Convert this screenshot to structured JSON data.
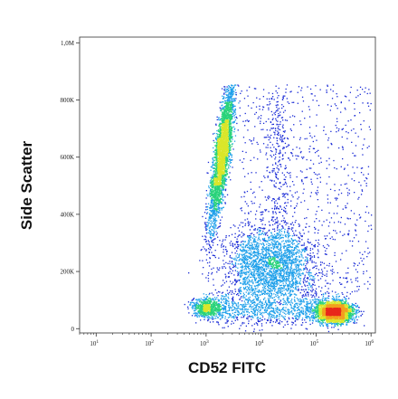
{
  "chart_data": {
    "type": "scatter",
    "style": "flow-cytometry density dot plot (pseudocolor)",
    "xlabel": "CD52 FITC",
    "ylabel": "Side Scatter",
    "x_scale": "log",
    "xlim": [
      5,
      1200000.0
    ],
    "ylim": [
      -15000,
      1020000
    ],
    "x_ticks": [
      {
        "value": 10,
        "base": "10",
        "exp": "1"
      },
      {
        "value": 100,
        "base": "10",
        "exp": "2"
      },
      {
        "value": 1000,
        "base": "10",
        "exp": "3"
      },
      {
        "value": 10000,
        "base": "10",
        "exp": "4"
      },
      {
        "value": 100000,
        "base": "10",
        "exp": "5"
      },
      {
        "value": 1000000,
        "base": "10",
        "exp": "6"
      }
    ],
    "y_ticks": [
      {
        "value": 0,
        "label": "0"
      },
      {
        "value": 200000,
        "label": "200K"
      },
      {
        "value": 400000,
        "label": "400K"
      },
      {
        "value": 600000,
        "label": "600K"
      },
      {
        "value": 800000,
        "label": "800K"
      },
      {
        "value": 1000000,
        "label": "1,0M"
      }
    ],
    "grid": false,
    "legend": "none",
    "density_colors": [
      "#1a2bd6",
      "#1fa0ea",
      "#29d37a",
      "#d9e62a",
      "#f2a01e",
      "#e8281c"
    ],
    "populations": [
      {
        "x_log_center": 3.3,
        "y_center": 610000,
        "x_log_sd": 0.12,
        "y_sd": 150000,
        "tilt": 0.9,
        "density": "high"
      },
      {
        "x_log_center": 5.35,
        "y_center": 60000,
        "x_log_sd": 0.2,
        "y_sd": 22000,
        "density": "very high"
      },
      {
        "x_log_center": 4.2,
        "y_center": 230000,
        "x_log_sd": 0.45,
        "y_sd": 70000,
        "density": "medium"
      },
      {
        "x_log_center": 3.0,
        "y_center": 75000,
        "x_log_sd": 0.15,
        "y_sd": 20000,
        "density": "medium"
      },
      {
        "x_log_center": 4.8,
        "y_center": 520000,
        "x_log_sd": 0.5,
        "y_sd": 200000,
        "density": "low"
      }
    ]
  }
}
